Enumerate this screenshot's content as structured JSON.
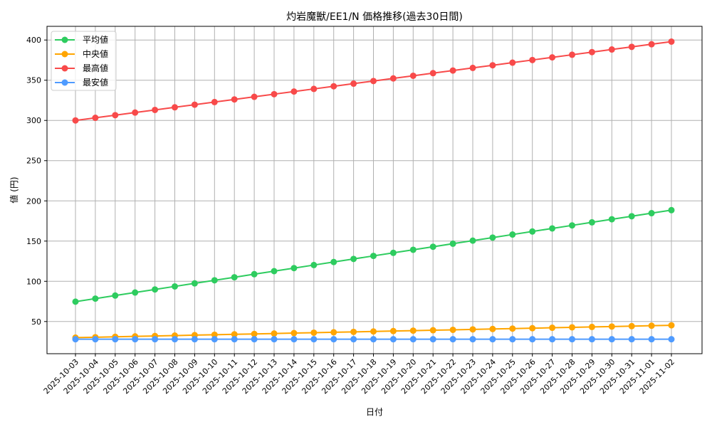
{
  "chart_data": {
    "type": "line",
    "title": "灼岩魔獣/EE1/N 価格推移(過去30日間)",
    "xlabel": "日付",
    "ylabel": "値 (円)",
    "ylim": [
      10,
      417
    ],
    "yticks": [
      50,
      100,
      150,
      200,
      250,
      300,
      350,
      400
    ],
    "grid": true,
    "legend_position": "upper left",
    "x": [
      "2025-10-03",
      "2025-10-04",
      "2025-10-05",
      "2025-10-06",
      "2025-10-07",
      "2025-10-08",
      "2025-10-09",
      "2025-10-10",
      "2025-10-11",
      "2025-10-12",
      "2025-10-13",
      "2025-10-14",
      "2025-10-15",
      "2025-10-16",
      "2025-10-17",
      "2025-10-18",
      "2025-10-19",
      "2025-10-20",
      "2025-10-21",
      "2025-10-22",
      "2025-10-23",
      "2025-10-24",
      "2025-10-25",
      "2025-10-26",
      "2025-10-27",
      "2025-10-28",
      "2025-10-29",
      "2025-10-30",
      "2025-10-31",
      "2025-11-01",
      "2025-11-02"
    ],
    "series": [
      {
        "name": "平均値",
        "color": "#2ecc5f",
        "start": 74.7,
        "end": 188.5
      },
      {
        "name": "中央値",
        "color": "#ffa500",
        "start": 30.0,
        "end": 45.3
      },
      {
        "name": "最高値",
        "color": "#f84a4a",
        "start": 300.0,
        "end": 398.0
      },
      {
        "name": "最安値",
        "color": "#4f9bff",
        "start": 28.0,
        "end": 28.0
      }
    ]
  }
}
